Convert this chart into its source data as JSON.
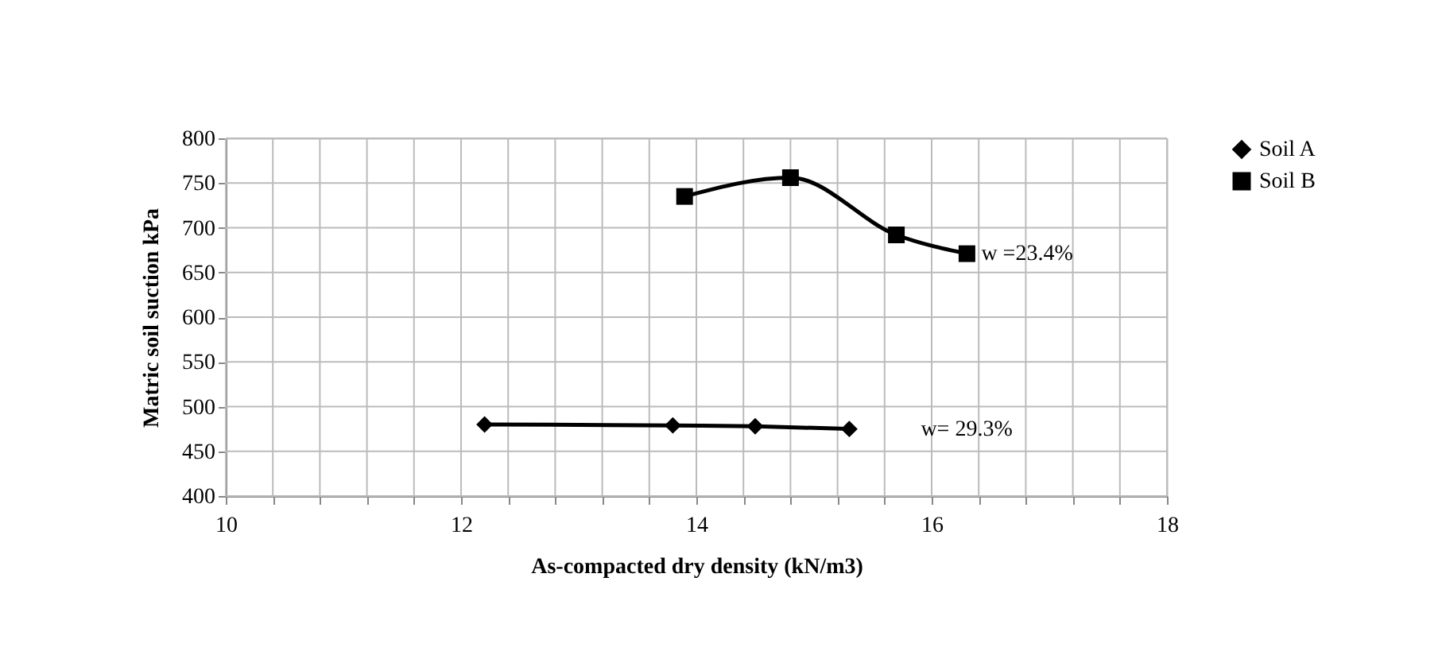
{
  "chart_data": {
    "type": "line",
    "xlabel": "As-compacted  dry  density     (kN/m3)",
    "ylabel": "Matric soil suction  kPa",
    "xlim": [
      10,
      18
    ],
    "ylim": [
      400,
      800
    ],
    "xticks": [
      10,
      {
        "value": 10.4,
        "label": null
      },
      {
        "value": 10.8,
        "label": null
      },
      {
        "value": 11.2,
        "label": null
      },
      {
        "value": 11.6,
        "label": null
      },
      12,
      {
        "value": 12.4,
        "label": null
      },
      {
        "value": 12.8,
        "label": null
      },
      {
        "value": 13.2,
        "label": null
      },
      {
        "value": 13.6,
        "label": null
      },
      14,
      {
        "value": 14.4,
        "label": null
      },
      {
        "value": 14.8,
        "label": null
      },
      {
        "value": 15.2,
        "label": null
      },
      {
        "value": 15.6,
        "label": null
      },
      16,
      {
        "value": 16.4,
        "label": null
      },
      {
        "value": 16.8,
        "label": null
      },
      {
        "value": 17.2,
        "label": null
      },
      {
        "value": 17.6,
        "label": null
      },
      18
    ],
    "yticks": [
      400,
      450,
      500,
      550,
      600,
      650,
      700,
      750,
      800
    ],
    "grid": true,
    "legend": "right",
    "line_style": "solid",
    "series": [
      {
        "name": "Soil A",
        "color": "#000000",
        "marker": "diamond",
        "x": [
          12.2,
          13.8,
          14.5,
          15.3
        ],
        "values": [
          480,
          479,
          478,
          475
        ]
      },
      {
        "name": "Soil B",
        "color": "#000000",
        "marker": "square",
        "x": [
          13.9,
          14.8,
          15.7,
          16.3
        ],
        "values": [
          735,
          756,
          692,
          671
        ]
      }
    ],
    "annotations": [
      {
        "text": "w =23.4%",
        "x": 16.3,
        "y": 671
      },
      "w= 29.3%"
    ]
  }
}
